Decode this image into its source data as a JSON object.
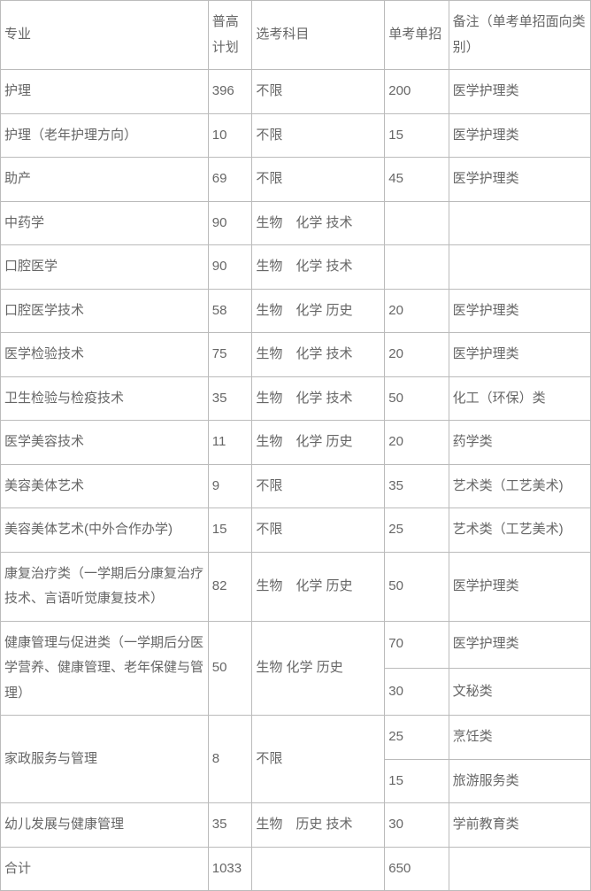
{
  "header": {
    "major": "专业",
    "plan": "普高计划",
    "subjects": "选考科目",
    "solo": "单考单招",
    "note": "备注（单考单招面向类别）"
  },
  "rows": [
    {
      "major": "护理",
      "plan": "396",
      "subjects": "不限",
      "solo": "200",
      "note": "医学护理类"
    },
    {
      "major": "护理（老年护理方向）",
      "plan": "10",
      "subjects": "不限",
      "solo": "15",
      "note": "医学护理类"
    },
    {
      "major": "助产",
      "plan": "69",
      "subjects": "不限",
      "solo": "45",
      "note": "医学护理类"
    },
    {
      "major": "中药学",
      "plan": "90",
      "subjects": "生物　化学 技术",
      "solo": "",
      "note": ""
    },
    {
      "major": "口腔医学",
      "plan": "90",
      "subjects": "生物　化学 技术",
      "solo": "",
      "note": ""
    },
    {
      "major": "口腔医学技术",
      "plan": "58",
      "subjects": "生物　化学 历史",
      "solo": "20",
      "note": "医学护理类"
    },
    {
      "major": "医学检验技术",
      "plan": "75",
      "subjects": "生物　化学 技术",
      "solo": "20",
      "note": "医学护理类"
    },
    {
      "major": "卫生检验与检疫技术",
      "plan": "35",
      "subjects": "生物　化学 技术",
      "solo": "50",
      "note": "化工（环保）类"
    },
    {
      "major": "医学美容技术",
      "plan": "11",
      "subjects": "生物　化学 历史",
      "solo": "20",
      "note": "药学类"
    },
    {
      "major": "美容美体艺术",
      "plan": "9",
      "subjects": "不限",
      "solo": "35",
      "note": "艺术类（工艺美术)"
    },
    {
      "major": "美容美体艺术(中外合作办学)",
      "plan": "15",
      "subjects": "不限",
      "solo": "25",
      "note": "艺术类（工艺美术)"
    },
    {
      "major": "康复治疗类（一学期后分康复治疗技术、言语听觉康复技术）",
      "plan": "82",
      "subjects": "生物　化学 历史",
      "solo": "50",
      "note": "医学护理类"
    }
  ],
  "healthMgmt": {
    "major": "健康管理与促进类（一学期后分医学营养、健康管理、老年保健与管理）",
    "plan": "50",
    "subjects": "生物 化学 历史",
    "solo1": "70",
    "note1": "医学护理类",
    "solo2": "30",
    "note2": "文秘类"
  },
  "homeService": {
    "major": "家政服务与管理",
    "plan": "8",
    "subjects": "不限",
    "solo1": "25",
    "note1": "烹饪类",
    "solo2": "15",
    "note2": "旅游服务类"
  },
  "childDev": {
    "major": "幼儿发展与健康管理",
    "plan": "35",
    "subjects": "生物　历史 技术",
    "solo": "30",
    "note": "学前教育类"
  },
  "total": {
    "major": "合计",
    "plan": "1033",
    "subjects": "",
    "solo": "650",
    "note": ""
  }
}
